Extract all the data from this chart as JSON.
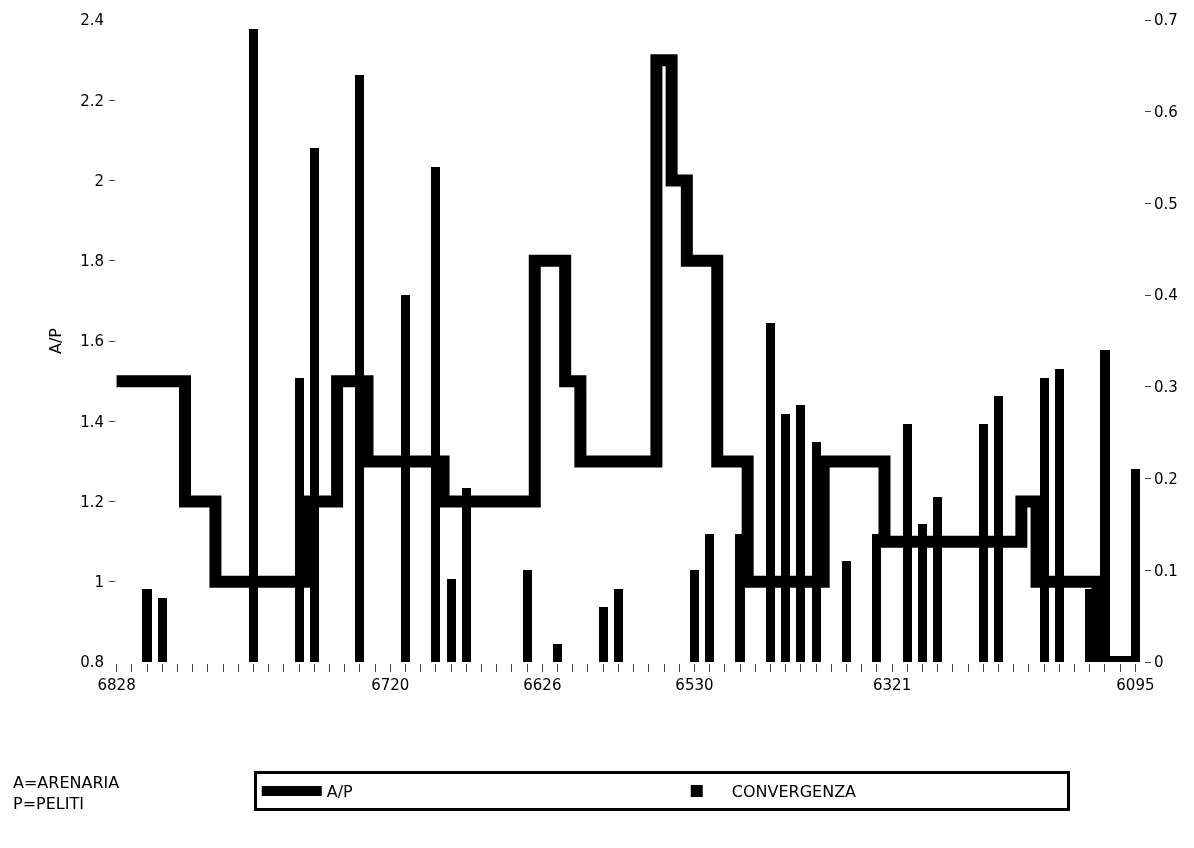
{
  "chart_data": {
    "type": "bar",
    "ylabel": "A/P",
    "categories": [
      "6828",
      null,
      null,
      null,
      null,
      null,
      null,
      null,
      null,
      null,
      null,
      null,
      null,
      null,
      null,
      null,
      null,
      null,
      "6720",
      null,
      null,
      null,
      null,
      null,
      null,
      null,
      null,
      null,
      "6626",
      null,
      null,
      null,
      null,
      null,
      null,
      null,
      null,
      null,
      "6530",
      null,
      null,
      null,
      null,
      null,
      null,
      null,
      null,
      null,
      null,
      null,
      null,
      "6321",
      null,
      null,
      null,
      null,
      null,
      null,
      null,
      null,
      null,
      null,
      null,
      null,
      null,
      null,
      null,
      "6095"
    ],
    "ylim": [
      0.8,
      2.4
    ],
    "yticks": [
      0.8,
      1,
      1.2,
      1.4,
      1.6,
      1.8,
      2,
      2.2,
      2.4
    ],
    "y2lim": [
      0,
      0.7
    ],
    "y2ticks": [
      0,
      0.1,
      0.2,
      0.3,
      0.4,
      0.5,
      0.6,
      0.7
    ],
    "legend": "bottom",
    "annotations": [
      "A=ARENARIA\nP=PELITI"
    ],
    "series": [
      {
        "name": "A/P",
        "type": "step",
        "color": "#000000",
        "values": [
          1.5,
          1.5,
          1.5,
          1.5,
          1.5,
          1.2,
          1.2,
          1.0,
          1.0,
          1.0,
          1.0,
          1.0,
          1.0,
          1.2,
          1.2,
          1.5,
          1.5,
          1.3,
          1.3,
          1.3,
          1.3,
          1.3,
          1.2,
          1.2,
          1.2,
          1.2,
          1.2,
          1.2,
          1.8,
          1.8,
          1.5,
          1.3,
          1.3,
          1.3,
          1.3,
          1.3,
          2.3,
          2.0,
          1.8,
          1.8,
          1.3,
          1.3,
          1.0,
          1.0,
          1.0,
          1.0,
          1.0,
          1.3,
          1.3,
          1.3,
          1.3,
          1.1,
          1.1,
          1.1,
          1.1,
          1.1,
          1.1,
          1.1,
          1.1,
          1.1,
          1.2,
          1.0,
          1.0,
          1.0,
          1.0,
          0.8,
          0.8,
          0.8
        ]
      },
      {
        "name": "CONVERGENZA",
        "axis": "y2",
        "color": "#000000",
        "values": [
          null,
          null,
          0.08,
          0.07,
          null,
          null,
          null,
          null,
          null,
          0.69,
          null,
          null,
          0.31,
          0.56,
          null,
          null,
          0.64,
          null,
          null,
          0.4,
          null,
          0.54,
          0.09,
          0.19,
          null,
          null,
          null,
          0.1,
          null,
          0.02,
          null,
          null,
          0.06,
          0.08,
          null,
          null,
          null,
          null,
          0.1,
          0.14,
          null,
          0.14,
          null,
          0.37,
          0.27,
          0.28,
          0.24,
          null,
          0.11,
          null,
          0.14,
          null,
          0.26,
          0.15,
          0.18,
          null,
          null,
          0.26,
          0.29,
          null,
          null,
          0.31,
          0.32,
          null,
          0.08,
          0.34,
          null,
          0.21
        ]
      }
    ]
  }
}
